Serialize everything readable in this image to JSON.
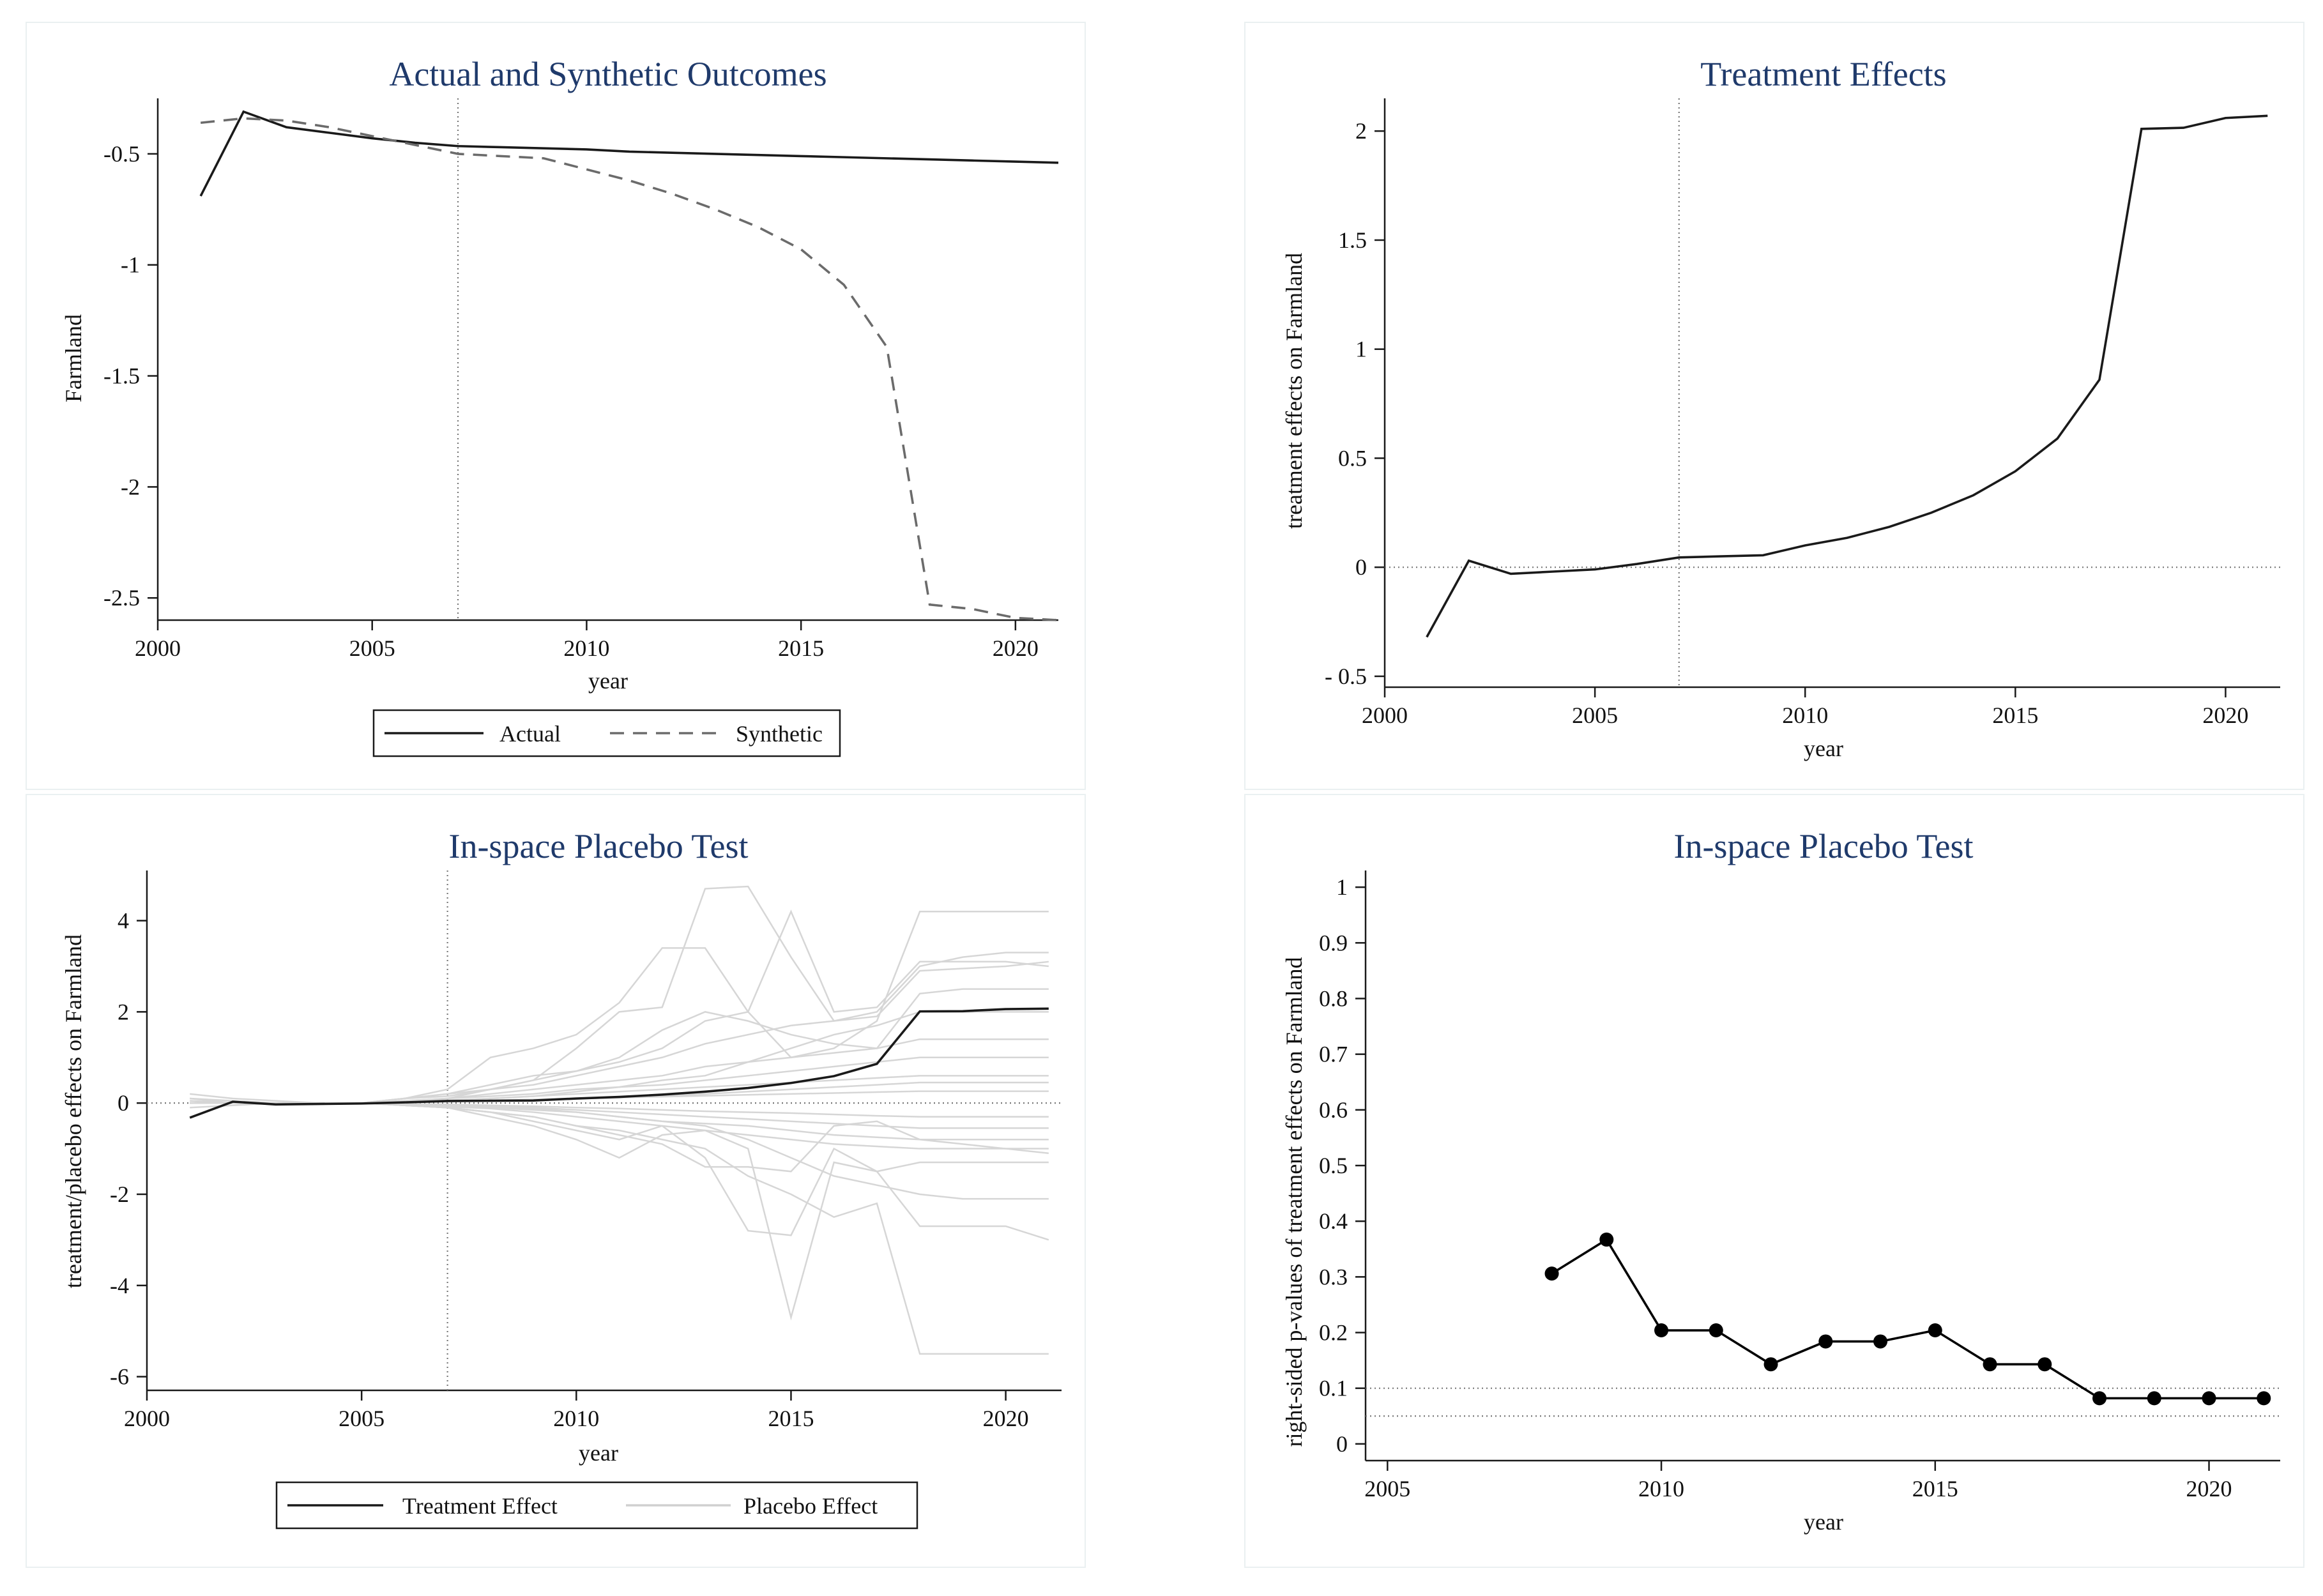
{
  "chart_data": [
    {
      "type": "line",
      "title": "Actual and Synthetic Outcomes",
      "xlabel": "year",
      "ylabel": "Farmland",
      "xlim": [
        2000,
        2021
      ],
      "ylim": [
        -2.6,
        -0.25
      ],
      "xticks": [
        2000,
        2005,
        2010,
        2015,
        2020
      ],
      "yticks": [
        -0.5,
        -1,
        -1.5,
        -2,
        -2.5
      ],
      "ytick_labels": [
        "-0.5",
        "-1",
        "-1.5",
        "-2",
        "-2.5"
      ],
      "treatment_year": 2007,
      "x": [
        2001,
        2002,
        2003,
        2004,
        2005,
        2006,
        2007,
        2008,
        2009,
        2010,
        2011,
        2012,
        2013,
        2014,
        2015,
        2016,
        2017,
        2018,
        2019,
        2020,
        2021
      ],
      "series": [
        {
          "name": "Actual",
          "style": "solid",
          "color": "#1a1a1a",
          "values": [
            -0.69,
            -0.31,
            -0.38,
            -0.405,
            -0.43,
            -0.45,
            -0.465,
            -0.47,
            -0.475,
            -0.48,
            -0.49,
            -0.495,
            -0.5,
            -0.505,
            -0.51,
            -0.515,
            -0.52,
            -0.525,
            -0.53,
            -0.535,
            -0.54
          ]
        },
        {
          "name": "Synthetic",
          "style": "dashed",
          "color": "#6b6b6b",
          "values": [
            -0.36,
            -0.34,
            -0.35,
            -0.38,
            -0.42,
            -0.46,
            -0.5,
            -0.51,
            -0.52,
            -0.57,
            -0.62,
            -0.68,
            -0.75,
            -0.83,
            -0.93,
            -1.09,
            -1.37,
            -2.53,
            -2.55,
            -2.59,
            -2.6
          ]
        }
      ],
      "legend": {
        "position": "bottom",
        "items": [
          "Actual",
          "Synthetic"
        ]
      }
    },
    {
      "type": "line",
      "title": "Treatment Effects",
      "xlabel": "year",
      "ylabel": "treatment effects on Farmland",
      "xlim": [
        2000,
        2021.3
      ],
      "ylim": [
        -0.55,
        2.15
      ],
      "xticks": [
        2000,
        2005,
        2010,
        2015,
        2020
      ],
      "yticks": [
        2,
        1.5,
        1,
        0.5,
        0,
        -0.5
      ],
      "ytick_labels": [
        "2",
        "1.5",
        "1",
        "0.5",
        "0",
        "- 0.5"
      ],
      "treatment_year": 2007,
      "reference_lines_y": [
        0
      ],
      "x": [
        2001,
        2002,
        2003,
        2004,
        2005,
        2006,
        2007,
        2008,
        2009,
        2010,
        2011,
        2012,
        2013,
        2014,
        2015,
        2016,
        2017,
        2018,
        2019,
        2020,
        2021
      ],
      "series": [
        {
          "name": "Treatment Effect",
          "color": "#1a1a1a",
          "values": [
            -0.32,
            0.03,
            -0.03,
            -0.02,
            -0.01,
            0.015,
            0.045,
            0.05,
            0.055,
            0.1,
            0.135,
            0.185,
            0.25,
            0.33,
            0.44,
            0.59,
            0.86,
            2.01,
            2.015,
            2.06,
            2.07
          ]
        }
      ]
    },
    {
      "type": "line",
      "title": "In-space Placebo Test",
      "xlabel": "year",
      "ylabel": "treatment/placebo effects on Farmland",
      "xlim": [
        2000,
        2021.3
      ],
      "ylim": [
        -6.3,
        5.1
      ],
      "xticks": [
        2000,
        2005,
        2010,
        2015,
        2020
      ],
      "yticks": [
        4,
        2,
        0,
        -2,
        -4,
        -6
      ],
      "ytick_labels": [
        "4",
        "2",
        "0",
        "-2",
        "-4",
        "-6"
      ],
      "treatment_year": 2007,
      "reference_lines_y": [
        0
      ],
      "x": [
        2001,
        2002,
        2003,
        2004,
        2005,
        2006,
        2007,
        2008,
        2009,
        2010,
        2011,
        2012,
        2013,
        2014,
        2015,
        2016,
        2017,
        2018,
        2019,
        2020,
        2021
      ],
      "series": [
        {
          "name": "Treatment Effect",
          "color": "#1a1a1a",
          "values": [
            -0.32,
            0.03,
            -0.03,
            -0.02,
            -0.01,
            0.015,
            0.045,
            0.05,
            0.055,
            0.1,
            0.135,
            0.185,
            0.25,
            0.33,
            0.44,
            0.59,
            0.86,
            2.01,
            2.015,
            2.06,
            2.07
          ]
        }
      ],
      "placebo_series": [
        [
          0.2,
          0.1,
          0.05,
          0.0,
          0.0,
          0.1,
          0.3,
          1.0,
          1.2,
          1.5,
          2.2,
          3.4,
          3.4,
          2.0,
          1.0,
          1.2,
          1.8,
          4.2,
          4.2,
          4.2,
          4.2
        ],
        [
          -0.1,
          -0.05,
          0.0,
          0.0,
          0.0,
          0.0,
          0.1,
          0.3,
          0.5,
          1.2,
          2.0,
          2.1,
          4.7,
          4.75,
          3.2,
          1.8,
          2.0,
          3.0,
          3.2,
          3.3,
          3.3
        ],
        [
          0.1,
          0.05,
          0.0,
          0.0,
          0.0,
          0.1,
          0.2,
          0.4,
          0.6,
          0.7,
          0.9,
          1.2,
          1.8,
          2.0,
          4.2,
          2.0,
          2.1,
          3.1,
          3.1,
          3.1,
          3.0
        ],
        [
          0.0,
          0.0,
          0.0,
          0.0,
          0.0,
          0.1,
          0.2,
          0.3,
          0.4,
          0.6,
          0.8,
          1.0,
          1.3,
          1.5,
          1.7,
          1.8,
          1.9,
          2.9,
          2.95,
          3.0,
          3.1
        ],
        [
          0.05,
          0.0,
          0.0,
          0.0,
          0.0,
          0.1,
          0.15,
          0.3,
          0.5,
          0.7,
          1.0,
          1.6,
          2.0,
          1.8,
          1.5,
          1.3,
          1.2,
          2.4,
          2.5,
          2.5,
          2.5
        ],
        [
          0.0,
          0.0,
          0.0,
          0.0,
          0.0,
          0.05,
          0.1,
          0.2,
          0.3,
          0.4,
          0.5,
          0.6,
          0.8,
          0.9,
          1.0,
          1.1,
          1.2,
          1.4,
          1.4,
          1.4,
          1.4
        ],
        [
          0.0,
          0.0,
          0.0,
          0.0,
          0.0,
          0.05,
          0.1,
          0.15,
          0.2,
          0.3,
          0.35,
          0.4,
          0.5,
          0.6,
          0.7,
          0.8,
          0.9,
          1.0,
          1.0,
          1.0,
          1.0
        ],
        [
          0.0,
          0.0,
          0.0,
          0.0,
          0.0,
          0.03,
          0.06,
          0.1,
          0.15,
          0.2,
          0.25,
          0.3,
          0.35,
          0.4,
          0.45,
          0.5,
          0.55,
          0.6,
          0.6,
          0.6,
          0.6
        ],
        [
          0.0,
          0.0,
          0.0,
          0.0,
          0.0,
          0.02,
          0.04,
          0.06,
          0.08,
          0.1,
          0.12,
          0.14,
          0.16,
          0.18,
          0.2,
          0.22,
          0.24,
          0.26,
          0.26,
          0.26,
          0.26
        ],
        [
          0.0,
          0.0,
          0.0,
          0.0,
          0.0,
          -0.02,
          -0.05,
          -0.08,
          -0.1,
          -0.15,
          -0.2,
          -0.25,
          -0.3,
          -0.35,
          -0.4,
          -0.45,
          -0.5,
          -0.55,
          -0.55,
          -0.55,
          -0.55
        ],
        [
          0.0,
          0.0,
          0.0,
          0.0,
          0.0,
          -0.03,
          -0.08,
          -0.12,
          -0.2,
          -0.3,
          -0.4,
          -0.5,
          -0.6,
          -0.7,
          -0.8,
          -0.9,
          -0.95,
          -1.0,
          -1.0,
          -1.0,
          -1.0
        ],
        [
          0.0,
          0.0,
          0.0,
          0.0,
          0.0,
          -0.05,
          -0.1,
          -0.2,
          -0.3,
          -0.5,
          -0.7,
          -0.9,
          -1.4,
          -1.4,
          -1.5,
          -0.5,
          -0.4,
          -0.8,
          -0.9,
          -1.0,
          -1.1
        ],
        [
          0.0,
          0.0,
          0.0,
          0.0,
          0.0,
          -0.05,
          -0.1,
          -0.2,
          -0.4,
          -0.6,
          -0.8,
          -0.5,
          -1.2,
          -2.8,
          -2.9,
          -1.0,
          -1.5,
          -1.3,
          -1.3,
          -1.3,
          -1.3
        ],
        [
          0.1,
          0.0,
          0.0,
          0.0,
          0.0,
          -0.05,
          -0.1,
          -0.3,
          -0.5,
          -0.8,
          -1.2,
          -0.7,
          -0.6,
          -1.0,
          -4.7,
          -1.3,
          -1.5,
          -2.7,
          -2.7,
          -2.7,
          -3.0
        ],
        [
          0.0,
          0.0,
          0.0,
          0.0,
          0.0,
          -0.05,
          -0.1,
          -0.2,
          -0.3,
          -0.5,
          -0.6,
          -0.8,
          -1.0,
          -1.6,
          -2.0,
          -2.5,
          -2.2,
          -5.5,
          -5.5,
          -5.5,
          -5.5
        ],
        [
          0.0,
          0.0,
          0.0,
          0.0,
          0.0,
          -0.02,
          -0.05,
          -0.08,
          -0.12,
          -0.2,
          -0.3,
          -0.4,
          -0.5,
          -0.8,
          -1.2,
          -1.6,
          -1.8,
          -2.0,
          -2.1,
          -2.1,
          -2.1
        ],
        [
          0.0,
          0.0,
          0.0,
          0.0,
          0.0,
          0.02,
          0.05,
          0.1,
          0.15,
          0.25,
          0.35,
          0.5,
          0.6,
          0.9,
          1.2,
          1.5,
          1.7,
          2.0,
          2.0,
          2.0,
          2.0
        ],
        [
          0.0,
          0.0,
          0.0,
          0.0,
          0.0,
          -0.02,
          -0.03,
          -0.05,
          -0.07,
          -0.1,
          -0.12,
          -0.15,
          -0.18,
          -0.2,
          -0.22,
          -0.25,
          -0.28,
          -0.3,
          -0.3,
          -0.3,
          -0.3
        ],
        [
          0.0,
          0.0,
          0.0,
          0.0,
          0.0,
          0.02,
          0.03,
          0.05,
          0.07,
          0.1,
          0.12,
          0.15,
          0.2,
          0.25,
          0.3,
          0.35,
          0.4,
          0.45,
          0.45,
          0.45,
          0.45
        ],
        [
          0.0,
          0.0,
          0.0,
          0.0,
          0.0,
          -0.03,
          -0.06,
          -0.1,
          -0.15,
          -0.2,
          -0.3,
          -0.4,
          -0.45,
          -0.5,
          -0.6,
          -0.7,
          -0.75,
          -0.8,
          -0.8,
          -0.8,
          -0.8
        ]
      ],
      "legend": {
        "position": "bottom",
        "items": [
          "Treatment Effect",
          "Placebo Effect"
        ]
      }
    },
    {
      "type": "scatter",
      "title": "In-space Placebo Test",
      "xlabel": "year",
      "ylabel": "right-sided p-values of treatment effects on Farmland",
      "xlim": [
        2004.6,
        2021.3
      ],
      "ylim": [
        -0.03,
        1.03
      ],
      "xticks": [
        2005,
        2010,
        2015,
        2020
      ],
      "yticks": [
        0,
        0.1,
        0.2,
        0.3,
        0.4,
        0.5,
        0.6,
        0.7,
        0.8,
        0.9,
        1
      ],
      "ytick_labels": [
        "0",
        "0.1",
        "0.2",
        "0.3",
        "0.4",
        "0.5",
        "0.6",
        "0.7",
        "0.8",
        "0.9",
        "1"
      ],
      "reference_lines_y": [
        0.1,
        0.05
      ],
      "x": [
        2008,
        2009,
        2010,
        2011,
        2012,
        2013,
        2014,
        2015,
        2016,
        2017,
        2018,
        2019,
        2020,
        2021
      ],
      "series": [
        {
          "name": "p-value",
          "color": "#000000",
          "values": [
            0.306,
            0.367,
            0.204,
            0.204,
            0.143,
            0.184,
            0.184,
            0.204,
            0.143,
            0.143,
            0.082,
            0.082,
            0.082,
            0.082
          ]
        }
      ]
    }
  ]
}
